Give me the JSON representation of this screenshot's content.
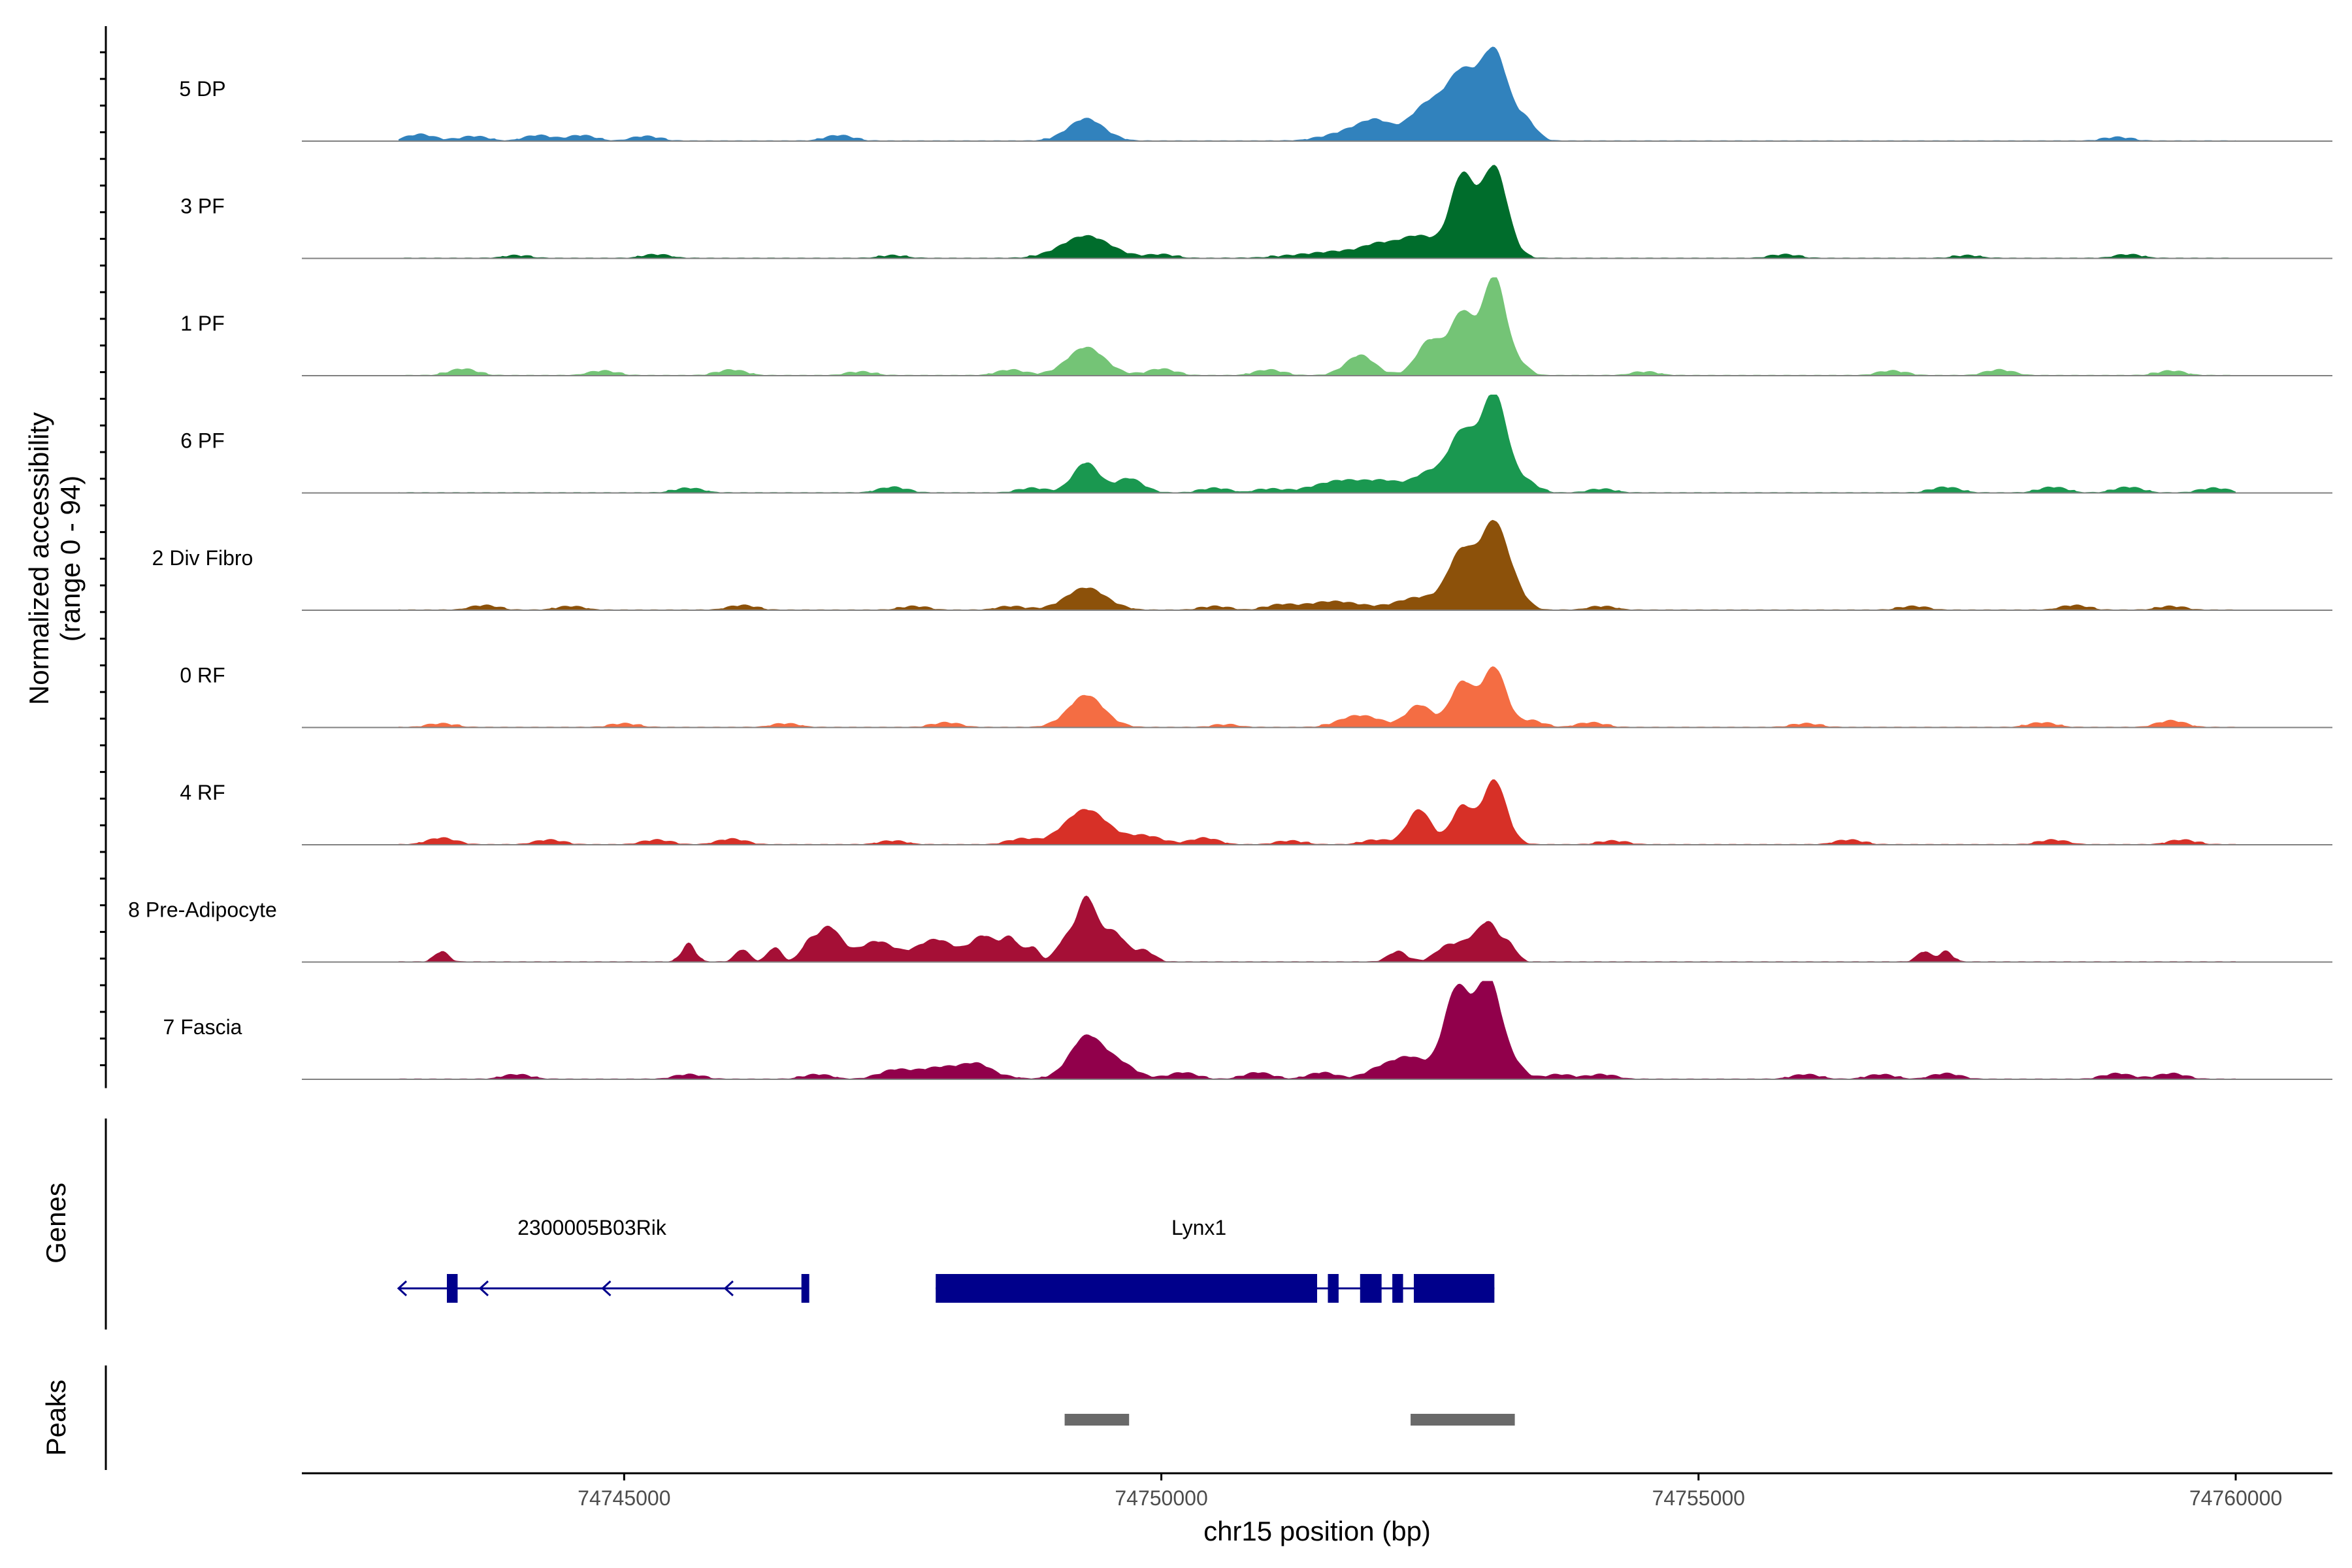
{
  "chart_data": {
    "type": "area",
    "title": "",
    "xlabel": "chr15 position (bp)",
    "ylabel": "Normalized accessibility",
    "ylabel_range": "(range 0 - 94)",
    "xlim": [
      74742000,
      74760900
    ],
    "ylim": [
      0,
      94
    ],
    "x_ticks": [
      74745000,
      74750000,
      74755000,
      74760000
    ],
    "x_tick_labels": [
      "74745000",
      "74750000",
      "74755000",
      "74760000"
    ],
    "region_start": 74742900,
    "region_end": 74760000,
    "tracks": [
      {
        "name": "5 DP",
        "color": "#3182BD",
        "peaks": [
          [
            74749300,
            22,
            160
          ],
          [
            74751900,
            14,
            250
          ],
          [
            74752500,
            37,
            170
          ],
          [
            74752800,
            60,
            130
          ],
          [
            74753100,
            90,
            130
          ],
          [
            74753400,
            18,
            90
          ]
        ],
        "background": [
          [
            74743100,
            6
          ],
          [
            74743600,
            4
          ],
          [
            74744200,
            5
          ],
          [
            74744600,
            5
          ],
          [
            74745200,
            4
          ],
          [
            74747000,
            5
          ],
          [
            74752000,
            8
          ],
          [
            74758900,
            3
          ]
        ]
      },
      {
        "name": "3 PF",
        "color": "#006D2C",
        "peaks": [
          [
            74749300,
            22,
            220
          ],
          [
            74751800,
            7,
            400
          ],
          [
            74752400,
            20,
            200
          ],
          [
            74752800,
            80,
            110
          ],
          [
            74753100,
            92,
            120
          ]
        ],
        "background": [
          [
            74744000,
            2
          ],
          [
            74745300,
            3
          ],
          [
            74747500,
            2
          ],
          [
            74750000,
            3
          ],
          [
            74752000,
            6
          ],
          [
            74755800,
            3
          ],
          [
            74757500,
            2
          ],
          [
            74759000,
            3
          ]
        ]
      },
      {
        "name": "1 PF",
        "color": "#74C476",
        "peaks": [
          [
            74749300,
            28,
            170
          ],
          [
            74751850,
            20,
            130
          ],
          [
            74752500,
            35,
            120
          ],
          [
            74752800,
            62,
            110
          ],
          [
            74753100,
            100,
            110
          ],
          [
            74753350,
            8,
            80
          ]
        ],
        "background": [
          [
            74743500,
            6
          ],
          [
            74744800,
            4
          ],
          [
            74746000,
            5
          ],
          [
            74747200,
            3
          ],
          [
            74748600,
            5
          ],
          [
            74750000,
            6
          ],
          [
            74751000,
            5
          ],
          [
            74754500,
            3
          ],
          [
            74756800,
            4
          ],
          [
            74757800,
            5
          ],
          [
            74759400,
            4
          ]
        ]
      },
      {
        "name": "6 PF",
        "color": "#1A9850",
        "peaks": [
          [
            74749300,
            30,
            120
          ],
          [
            74749700,
            14,
            120
          ],
          [
            74751700,
            12,
            250
          ],
          [
            74752100,
            8,
            150
          ],
          [
            74752500,
            20,
            150
          ],
          [
            74752800,
            58,
            120
          ],
          [
            74753100,
            100,
            120
          ],
          [
            74753400,
            10,
            100
          ]
        ],
        "background": [
          [
            74745600,
            4
          ],
          [
            74747500,
            5
          ],
          [
            74748800,
            4
          ],
          [
            74750500,
            4
          ],
          [
            74751000,
            3
          ],
          [
            74754100,
            3
          ],
          [
            74757300,
            5
          ],
          [
            74758300,
            5
          ],
          [
            74759000,
            5
          ],
          [
            74759800,
            4
          ]
        ]
      },
      {
        "name": "2 Div Fibro",
        "color": "#8C510A",
        "peaks": [
          [
            74749300,
            22,
            180
          ],
          [
            74751600,
            8,
            250
          ],
          [
            74752400,
            12,
            200
          ],
          [
            74752800,
            58,
            130
          ],
          [
            74753100,
            85,
            120
          ],
          [
            74753300,
            15,
            100
          ]
        ],
        "background": [
          [
            74743700,
            4
          ],
          [
            74744500,
            3
          ],
          [
            74746100,
            4
          ],
          [
            74747700,
            3
          ],
          [
            74748600,
            3
          ],
          [
            74750500,
            3
          ],
          [
            74751100,
            4
          ],
          [
            74754100,
            3
          ],
          [
            74757000,
            3
          ],
          [
            74758500,
            4
          ],
          [
            74759400,
            3
          ]
        ]
      },
      {
        "name": "0 RF",
        "color": "#F46D43",
        "peaks": [
          [
            74749300,
            32,
            160
          ],
          [
            74751800,
            10,
            150
          ],
          [
            74752400,
            22,
            120
          ],
          [
            74752800,
            45,
            110
          ],
          [
            74753100,
            60,
            110
          ],
          [
            74753450,
            6,
            100
          ]
        ],
        "background": [
          [
            74743300,
            3
          ],
          [
            74745000,
            3
          ],
          [
            74746500,
            3
          ],
          [
            74748000,
            4
          ],
          [
            74750600,
            2
          ],
          [
            74752000,
            4
          ],
          [
            74754000,
            4
          ],
          [
            74756000,
            3
          ],
          [
            74758200,
            4
          ],
          [
            74759400,
            6
          ]
        ]
      },
      {
        "name": "4 RF",
        "color": "#D73027",
        "peaks": [
          [
            74749300,
            35,
            200
          ],
          [
            74749850,
            8,
            150
          ],
          [
            74752400,
            35,
            110
          ],
          [
            74752800,
            38,
            100
          ],
          [
            74753100,
            65,
            110
          ]
        ],
        "background": [
          [
            74743300,
            6
          ],
          [
            74744300,
            4
          ],
          [
            74745300,
            4
          ],
          [
            74746000,
            5
          ],
          [
            74747500,
            3
          ],
          [
            74748700,
            5
          ],
          [
            74750400,
            6
          ],
          [
            74751200,
            3
          ],
          [
            74752000,
            4
          ],
          [
            74754200,
            3
          ],
          [
            74756400,
            4
          ],
          [
            74758300,
            4
          ],
          [
            74759500,
            4
          ]
        ]
      },
      {
        "name": "8 Pre-Adipocyte",
        "color": "#A50F36",
        "peaks": [
          [
            74743300,
            10,
            60
          ],
          [
            74745600,
            18,
            60
          ],
          [
            74746100,
            12,
            60
          ],
          [
            74746400,
            14,
            60
          ],
          [
            74746700,
            12,
            60
          ],
          [
            74746900,
            35,
            120
          ],
          [
            74747350,
            20,
            160
          ],
          [
            74747900,
            22,
            180
          ],
          [
            74748350,
            25,
            120
          ],
          [
            74748600,
            22,
            80
          ],
          [
            74748800,
            14,
            60
          ],
          [
            74749100,
            20,
            80
          ],
          [
            74749300,
            62,
            90
          ],
          [
            74749550,
            30,
            120
          ],
          [
            74749850,
            10,
            80
          ],
          [
            74752200,
            10,
            80
          ],
          [
            74752650,
            14,
            100
          ],
          [
            74752850,
            16,
            100
          ],
          [
            74753050,
            38,
            100
          ],
          [
            74753250,
            14,
            60
          ],
          [
            74757100,
            10,
            60
          ],
          [
            74757300,
            10,
            60
          ]
        ],
        "background": []
      },
      {
        "name": "7 Fascia",
        "color": "#91004B",
        "peaks": [
          [
            74749300,
            42,
            150
          ],
          [
            74749600,
            15,
            150
          ],
          [
            74748000,
            12,
            300
          ],
          [
            74752300,
            22,
            180
          ],
          [
            74752750,
            90,
            120
          ],
          [
            74753050,
            100,
            120
          ],
          [
            74753300,
            10,
            90
          ]
        ],
        "background": [
          [
            74744000,
            4
          ],
          [
            74745600,
            4
          ],
          [
            74746800,
            4
          ],
          [
            74747500,
            6
          ],
          [
            74748300,
            8
          ],
          [
            74750200,
            6
          ],
          [
            74750900,
            6
          ],
          [
            74751500,
            6
          ],
          [
            74752000,
            6
          ],
          [
            74753700,
            4
          ],
          [
            74754100,
            4
          ],
          [
            74756000,
            4
          ],
          [
            74756700,
            4
          ],
          [
            74757300,
            5
          ],
          [
            74758900,
            5
          ],
          [
            74759400,
            5
          ]
        ]
      }
    ],
    "genes_track_label": "Genes",
    "genes": [
      {
        "name": "2300005B03Rik",
        "start": 74742900,
        "end": 74746700,
        "strand": "-",
        "exons": [
          [
            74743350,
            74743450
          ],
          [
            74746650,
            74746720
          ]
        ],
        "label_x": 74744700
      },
      {
        "name": "Lynx1",
        "start": 74747900,
        "end": 74753100,
        "strand": "+",
        "exons": [
          [
            74747900,
            74751450
          ],
          [
            74751550,
            74751650
          ],
          [
            74751850,
            74752050
          ],
          [
            74752150,
            74752250
          ],
          [
            74752350,
            74753100
          ]
        ],
        "label_x": 74750350
      }
    ],
    "peaks_track_label": "Peaks",
    "peak_regions": [
      [
        74749100,
        74749700
      ],
      [
        74752320,
        74753290
      ]
    ],
    "colors": {
      "gene": "#00008B",
      "peak_region": "#696969",
      "baseline": "#808080",
      "axis": "#000000",
      "tick_label": "#4D4D4D"
    }
  }
}
